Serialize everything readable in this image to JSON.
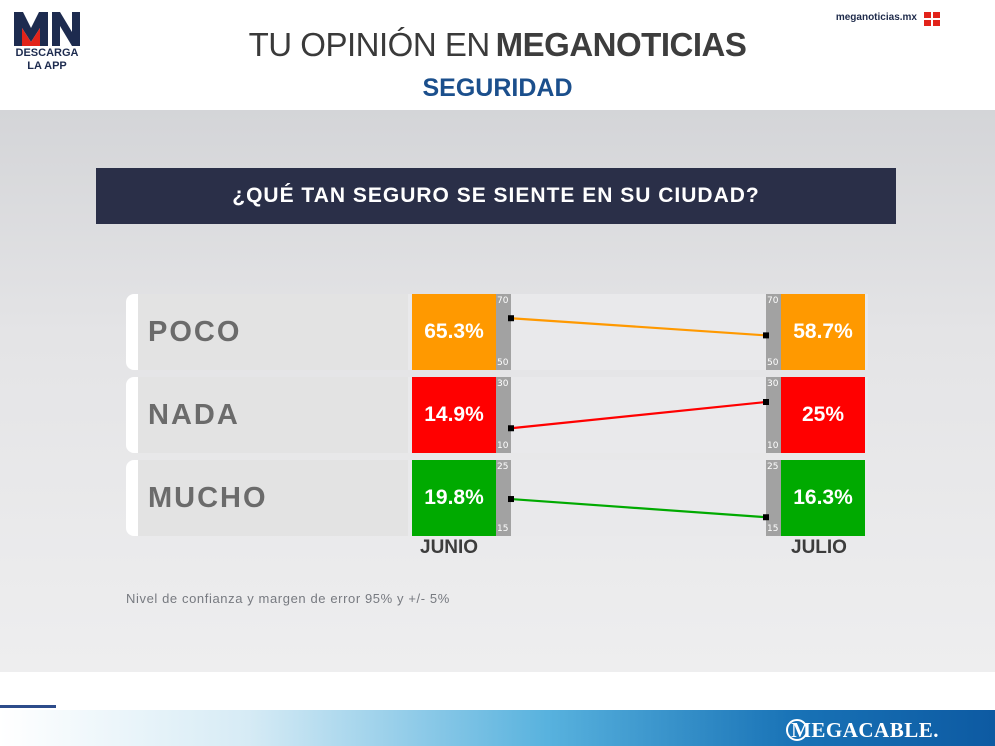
{
  "header": {
    "logo_letters": "MN",
    "logo_cta": "DESCARGA LA APP",
    "title_thin": "TU OPINIÓN EN",
    "title_bold": "MEGANOTICIAS",
    "subtitle": "SEGURIDAD",
    "site": "meganoticias.mx"
  },
  "colors": {
    "poco": "#ff9900",
    "nada": "#ff0000",
    "mucho": "#00aa00",
    "question_bg": "#2a2f48",
    "subtitle": "#1b4f8c"
  },
  "chart_data": {
    "type": "slope",
    "title": "¿QUÉ TAN SEGURO SE SIENTE EN SU CIUDAD?",
    "periods": [
      "JUNIO",
      "JULIO"
    ],
    "series": [
      {
        "name": "POCO",
        "values": [
          65.3,
          58.7
        ],
        "labels": [
          "65.3%",
          "58.7%"
        ],
        "scale": [
          50,
          70
        ]
      },
      {
        "name": "NADA",
        "values": [
          14.9,
          25
        ],
        "labels": [
          "14.9%",
          "25%"
        ],
        "scale": [
          10,
          30
        ]
      },
      {
        "name": "MUCHO",
        "values": [
          19.8,
          16.3
        ],
        "labels": [
          "19.8%",
          "16.3%"
        ],
        "scale": [
          15,
          25
        ]
      }
    ],
    "note": "Nivel de confianza y margen de error 95% y +/- 5%"
  },
  "footer": {
    "brand": "MEGACABLE."
  }
}
